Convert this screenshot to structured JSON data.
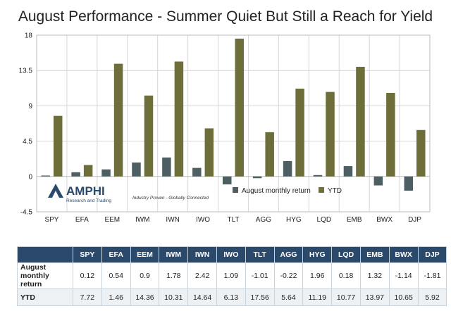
{
  "colors": {
    "monthly": "#4d5f63",
    "ytd": "#6e6e3b",
    "header_bg": "#2b4a6b"
  },
  "logo": {
    "name": "AMPHI",
    "sub": "Research and Trading",
    "tagline": "Industry Proven - Globally Connected"
  },
  "chart_data": {
    "type": "bar",
    "title": "August Performance - Summer Quiet But Still a Reach for Yield",
    "categories": [
      "SPY",
      "EFA",
      "EEM",
      "IWM",
      "IWN",
      "IWO",
      "TLT",
      "AGG",
      "HYG",
      "LQD",
      "EMB",
      "BWX",
      "DJP"
    ],
    "series": [
      {
        "name": "August monthly return",
        "values": [
          0.12,
          0.54,
          0.9,
          1.78,
          2.42,
          1.09,
          -1.01,
          -0.22,
          1.96,
          0.18,
          1.32,
          -1.14,
          -1.81
        ]
      },
      {
        "name": "YTD",
        "values": [
          7.72,
          1.46,
          14.36,
          10.31,
          14.64,
          6.13,
          17.56,
          5.64,
          11.19,
          10.77,
          13.97,
          10.65,
          5.92
        ]
      }
    ],
    "ylim": [
      -4.5,
      18
    ],
    "yticks": [
      "18",
      "13.5",
      "9",
      "4.5",
      "0",
      "-4.5"
    ],
    "grid": true,
    "legend": "bottom-right"
  },
  "table": {
    "columns": [
      "SPY",
      "EFA",
      "EEM",
      "IWM",
      "IWN",
      "IWO",
      "TLT",
      "AGG",
      "HYG",
      "LQD",
      "EMB",
      "BWX",
      "DJP"
    ],
    "rows": [
      {
        "label": "August monthly return",
        "values": [
          "0.12",
          "0.54",
          "0.9",
          "1.78",
          "2.42",
          "1.09",
          "-1.01",
          "-0.22",
          "1.96",
          "0.18",
          "1.32",
          "-1.14",
          "-1.81"
        ]
      },
      {
        "label": "YTD",
        "values": [
          "7.72",
          "1.46",
          "14.36",
          "10.31",
          "14.64",
          "6.13",
          "17.56",
          "5.64",
          "11.19",
          "10.77",
          "13.97",
          "10.65",
          "5.92"
        ]
      }
    ]
  }
}
